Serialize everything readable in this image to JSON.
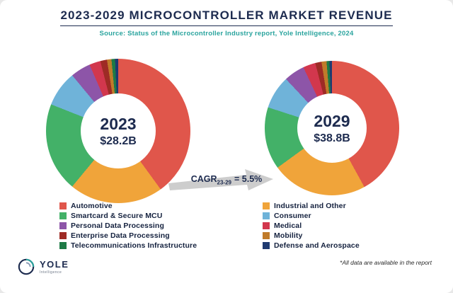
{
  "header": {
    "title": "2023-2029 MICROCONTROLLER MARKET REVENUE",
    "source": "Source: Status of the Microcontroller Industry report, Yole Intelligence, 2024"
  },
  "cagr": {
    "prefix": "CAGR",
    "subscript": "23-29",
    "suffix": "= 5.5%"
  },
  "legend": {
    "left": [
      {
        "label": "Automotive",
        "color": "#e0564b"
      },
      {
        "label": "Smartcard & Secure MCU",
        "color": "#43b168"
      },
      {
        "label": "Personal Data Processing",
        "color": "#8d55a8"
      },
      {
        "label": "Enterprise Data Processing",
        "color": "#9e2b25"
      },
      {
        "label": "Telecommunications Infrastructure",
        "color": "#1e7a46"
      }
    ],
    "right": [
      {
        "label": "Industrial and Other",
        "color": "#f0a43a"
      },
      {
        "label": "Consumer",
        "color": "#6fb3d9"
      },
      {
        "label": "Medical",
        "color": "#d2374d"
      },
      {
        "label": "Mobility",
        "color": "#c07b2a"
      },
      {
        "label": "Defense and Aerospace",
        "color": "#1f3a70"
      }
    ]
  },
  "chart_data": [
    {
      "type": "pie",
      "title": "2023",
      "center_year": "2023",
      "center_value": "$28.2B",
      "segments": [
        {
          "label": "Automotive",
          "color": "#e0564b",
          "percent": 40
        },
        {
          "label": "Industrial and Other",
          "color": "#f0a43a",
          "percent": 21
        },
        {
          "label": "Smartcard & Secure MCU",
          "color": "#43b168",
          "percent": 20
        },
        {
          "label": "Consumer",
          "color": "#6fb3d9",
          "percent": 8
        },
        {
          "label": "Personal Data Processing",
          "color": "#8d55a8",
          "percent": 4.5
        },
        {
          "label": "Medical",
          "color": "#d2374d",
          "percent": 2.5
        },
        {
          "label": "Enterprise Data Processing",
          "color": "#9e2b25",
          "percent": 1.5
        },
        {
          "label": "Mobility",
          "color": "#c07b2a",
          "percent": 1
        },
        {
          "label": "Telecommunications Infrastructure",
          "color": "#1e7a46",
          "percent": 0.8
        },
        {
          "label": "Defense and Aerospace",
          "color": "#1f3a70",
          "percent": 0.7
        }
      ]
    },
    {
      "type": "pie",
      "title": "2029",
      "center_year": "2029",
      "center_value": "$38.8B",
      "segments": [
        {
          "label": "Automotive",
          "color": "#e0564b",
          "percent": 42
        },
        {
          "label": "Industrial and Other",
          "color": "#f0a43a",
          "percent": 23
        },
        {
          "label": "Smartcard & Secure MCU",
          "color": "#43b168",
          "percent": 15
        },
        {
          "label": "Consumer",
          "color": "#6fb3d9",
          "percent": 8
        },
        {
          "label": "Personal Data Processing",
          "color": "#8d55a8",
          "percent": 5
        },
        {
          "label": "Medical",
          "color": "#d2374d",
          "percent": 3
        },
        {
          "label": "Enterprise Data Processing",
          "color": "#9e2b25",
          "percent": 1.5
        },
        {
          "label": "Mobility",
          "color": "#c07b2a",
          "percent": 1.2
        },
        {
          "label": "Telecommunications Infrastructure",
          "color": "#1e7a46",
          "percent": 0.7
        },
        {
          "label": "Defense and Aerospace",
          "color": "#1f3a70",
          "percent": 0.6
        }
      ]
    }
  ],
  "footer": {
    "logo_text": "YOLE",
    "logo_subtext": "Intelligence",
    "note": "*All data are available in the report"
  }
}
